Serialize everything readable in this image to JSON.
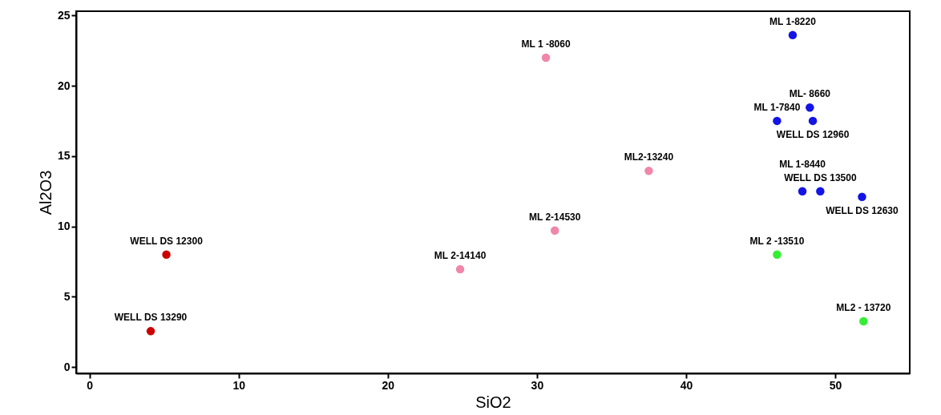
{
  "chart_data": {
    "type": "scatter",
    "xlabel": "SiO2",
    "ylabel": "Al2O3",
    "x": [
      47.15,
      30.6,
      48.3,
      46.1,
      48.5,
      37.5,
      47.8,
      49.0,
      51.8,
      31.2,
      5.15,
      46.1,
      24.85,
      4.1,
      51.9
    ],
    "values": [
      23.6,
      22.0,
      18.45,
      17.5,
      17.5,
      13.95,
      12.5,
      12.5,
      12.1,
      9.7,
      8.0,
      8.0,
      6.95,
      2.55,
      3.25
    ],
    "colors": [
      "#1414e6",
      "#f086aa",
      "#1414e6",
      "#1414e6",
      "#1414e6",
      "#f086aa",
      "#1414e6",
      "#1414e6",
      "#1414e6",
      "#f086aa",
      "#cc0000",
      "#33ee33",
      "#f086aa",
      "#cc0000",
      "#33ee33"
    ],
    "annotations": [
      {
        "text": "ML 1-8220",
        "x": 47.15,
        "y": 23.6
      },
      {
        "text": "ML 1 -8060",
        "x": 30.6,
        "y": 22.0
      },
      {
        "text": "ML- 8660",
        "x": 48.3,
        "y": 18.45
      },
      {
        "text": "ML 1-7840",
        "x": 46.1,
        "y": 17.5
      },
      {
        "text": "WELL DS 12960",
        "x": 48.5,
        "y": 17.5
      },
      {
        "text": "ML2-13240",
        "x": 37.5,
        "y": 13.95
      },
      {
        "text": "WELL DS 13500",
        "x": 49.0,
        "y": 12.5
      },
      {
        "text": "ML 1-8440",
        "x": 47.8,
        "y": 12.5
      },
      {
        "text": "WELL DS 12630",
        "x": 51.8,
        "y": 12.1
      },
      {
        "text": "ML 2-14530",
        "x": 31.2,
        "y": 9.7
      },
      {
        "text": "WELL DS 12300",
        "x": 5.15,
        "y": 8.0
      },
      {
        "text": "ML 2 -13510",
        "x": 46.1,
        "y": 8.0
      },
      {
        "text": "ML 2-14140",
        "x": 24.85,
        "y": 6.95
      },
      {
        "text": "WELL DS 13290",
        "x": 4.1,
        "y": 2.55
      },
      {
        "text": "ML2 - 13720",
        "x": 51.9,
        "y": 3.25
      }
    ],
    "xlim": [
      -0.9,
      55
    ],
    "xticks": [
      0,
      10,
      20,
      30,
      40,
      50
    ],
    "ylim": [
      -0.45,
      25.3
    ],
    "yticks": [
      0,
      5,
      10,
      15,
      20,
      25
    ],
    "grid": false
  }
}
